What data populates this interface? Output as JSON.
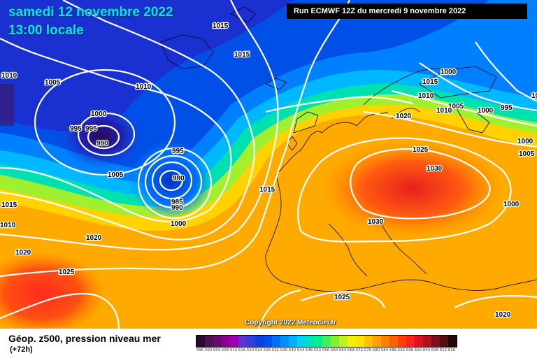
{
  "header": {
    "date": "samedi 12 novembre 2022",
    "local_time": "13:00 locale",
    "run_info": "Run ECMWF 12Z du mercredi 9 novembre 2022"
  },
  "map": {
    "isobar_labels": [
      "1015",
      "1015",
      "1005",
      "1010",
      "1000",
      "995",
      "995",
      "990",
      "1005",
      "995",
      "980",
      "985",
      "990",
      "1000",
      "1015",
      "1020",
      "1025",
      "1015",
      "1010",
      "1020",
      "1030",
      "1030",
      "1025",
      "1025",
      "1020",
      "1020",
      "1005",
      "1000",
      "995",
      "1000",
      "1000",
      "1005",
      "1010",
      "1010",
      "1010",
      "1000",
      "1015",
      "1010"
    ],
    "low_centers": [
      "990",
      "980"
    ],
    "high_centers": [
      "1030",
      "1030",
      "1025"
    ],
    "isobar_color": "#ffffff",
    "coast_color": "#000000",
    "copyright": "Copyright 2022 Meteociel.fr"
  },
  "footer": {
    "title": "Géop. z500, pression niveau mer",
    "subtitle": "(+72h)"
  },
  "legend": {
    "labels": [
      "496",
      "500",
      "504",
      "508",
      "512",
      "516",
      "520",
      "524",
      "528",
      "532",
      "536",
      "540",
      "544",
      "548",
      "552",
      "556",
      "560",
      "564",
      "568",
      "572",
      "576",
      "580",
      "584",
      "588",
      "592",
      "596",
      "600",
      "604",
      "608",
      "612",
      "616"
    ],
    "colors": [
      "#2a0a2a",
      "#4a1050",
      "#6a0a70",
      "#8a0090",
      "#a000b0",
      "#6030d0",
      "#3040e0",
      "#1040e0",
      "#0050f0",
      "#0070ff",
      "#0090ff",
      "#00b0ff",
      "#00d0f0",
      "#00e0c0",
      "#00f090",
      "#40f060",
      "#80f030",
      "#c0f020",
      "#f0f000",
      "#ffe000",
      "#ffc000",
      "#ffa000",
      "#ff8000",
      "#ff6000",
      "#ff4000",
      "#ff2020",
      "#e01020",
      "#b01020",
      "#801020",
      "#501010",
      "#200808"
    ]
  }
}
